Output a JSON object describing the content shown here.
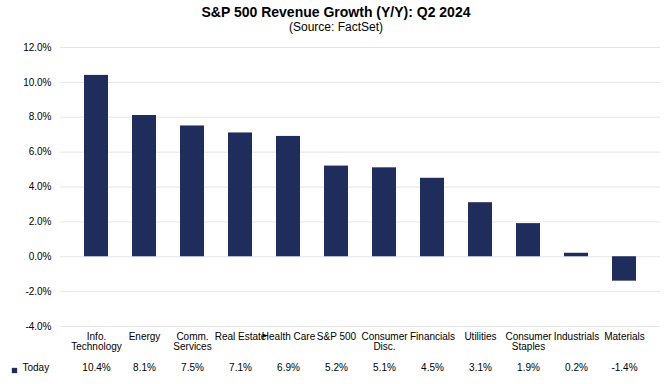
{
  "chart_data": {
    "type": "bar",
    "title": "S&P 500 Revenue Growth (Y/Y):  Q2 2024",
    "subtitle": "(Source: FactSet)",
    "categories": [
      "Info.\nTechnology",
      "Energy",
      "Comm.\nServices",
      "Real Estate",
      "Health Care",
      "S&P 500",
      "Consumer\nDisc.",
      "Financials",
      "Utilities",
      "Consumer\nStaples",
      "Industrials",
      "Materials"
    ],
    "series": [
      {
        "name": "Today",
        "color": "#1f2d5c",
        "values": [
          10.4,
          8.1,
          7.5,
          7.1,
          6.9,
          5.2,
          5.1,
          4.5,
          3.1,
          1.9,
          0.2,
          -1.4
        ],
        "value_labels": [
          "10.4%",
          "8.1%",
          "7.5%",
          "7.1%",
          "6.9%",
          "5.2%",
          "5.1%",
          "4.5%",
          "3.1%",
          "1.9%",
          "0.2%",
          "-1.4%"
        ]
      }
    ],
    "ylim": [
      -4,
      12
    ],
    "yticks": [
      {
        "value": -4,
        "label": "-4.0%"
      },
      {
        "value": -2,
        "label": "-2.0%"
      },
      {
        "value": 0,
        "label": "0.0%"
      },
      {
        "value": 2,
        "label": "2.0%"
      },
      {
        "value": 4,
        "label": "4.0%"
      },
      {
        "value": 6,
        "label": "6.0%"
      },
      {
        "value": 8,
        "label": "8.0%"
      },
      {
        "value": 10,
        "label": "10.0%"
      },
      {
        "value": 12,
        "label": "12.0%"
      }
    ],
    "grid": true,
    "legend": "bottom-left"
  }
}
